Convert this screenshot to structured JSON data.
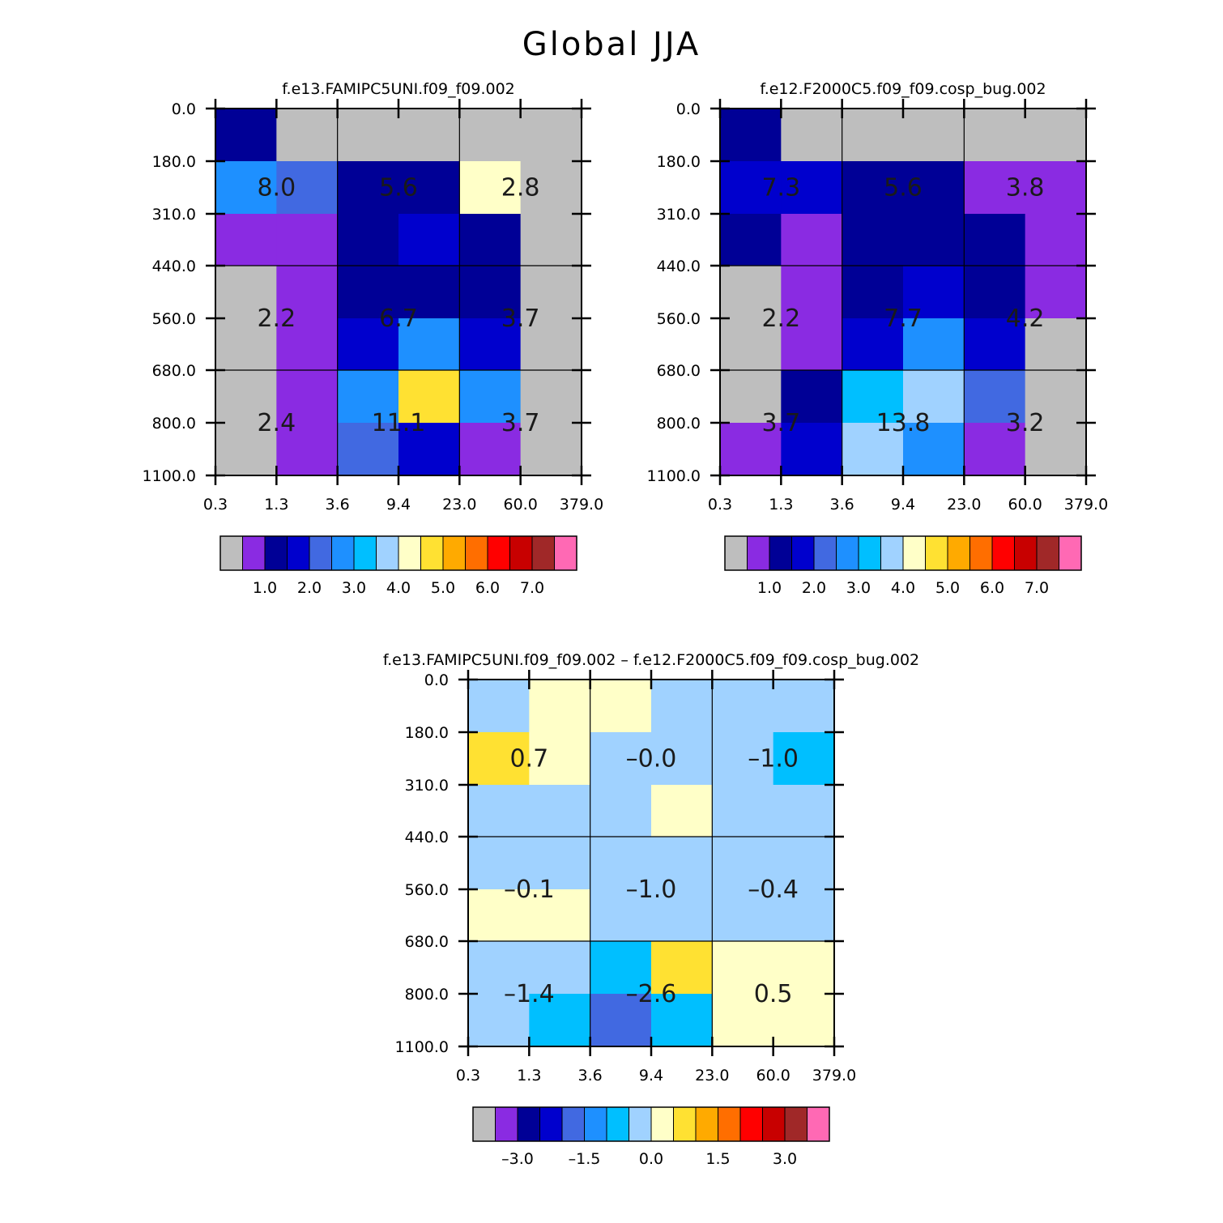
{
  "title": "Global JJA",
  "palette": [
    "#bebebe",
    "#8a2be2",
    "#000096",
    "#0000cd",
    "#4169e1",
    "#1e90ff",
    "#00bfff",
    "#a0d2ff",
    "#ffffc8",
    "#ffe132",
    "#ffaa00",
    "#ff6e00",
    "#ff0000",
    "#c80000",
    "#a02828",
    "#ff69b4"
  ],
  "chart_data": [
    {
      "type": "heatmap",
      "title": "f.e13.FAMIPC5UNI.f09_f09.002",
      "x_ticks": [
        "0.3",
        "1.3",
        "3.6",
        "9.4",
        "23.0",
        "60.0",
        "379.0"
      ],
      "y_ticks": [
        "0.0",
        "180.0",
        "310.0",
        "440.0",
        "560.0",
        "680.0",
        "800.0",
        "1100.0"
      ],
      "cell_colors": [
        [
          2,
          0,
          0,
          0,
          0,
          0
        ],
        [
          5,
          4,
          2,
          2,
          8,
          0
        ],
        [
          1,
          1,
          2,
          3,
          2,
          0
        ],
        [
          0,
          1,
          2,
          2,
          2,
          0
        ],
        [
          0,
          1,
          3,
          5,
          3,
          0
        ],
        [
          0,
          1,
          5,
          9,
          5,
          0
        ],
        [
          0,
          1,
          4,
          3,
          1,
          0
        ]
      ],
      "annotations": [
        {
          "row": 0,
          "col": 0,
          "text": "8.0"
        },
        {
          "row": 0,
          "col": 1,
          "text": "5.6"
        },
        {
          "row": 0,
          "col": 2,
          "text": "2.8"
        },
        {
          "row": 1,
          "col": 0,
          "text": "2.2"
        },
        {
          "row": 1,
          "col": 1,
          "text": "6.7"
        },
        {
          "row": 1,
          "col": 2,
          "text": "3.7"
        },
        {
          "row": 2,
          "col": 0,
          "text": "2.4"
        },
        {
          "row": 2,
          "col": 1,
          "text": "11.1"
        },
        {
          "row": 2,
          "col": 2,
          "text": "3.7"
        }
      ],
      "colorbar": {
        "labels": [
          "1.0",
          "2.0",
          "3.0",
          "4.0",
          "5.0",
          "6.0",
          "7.0"
        ],
        "label_start_boundary": 2
      }
    },
    {
      "type": "heatmap",
      "title": "f.e12.F2000C5.f09_f09.cosp_bug.002",
      "x_ticks": [
        "0.3",
        "1.3",
        "3.6",
        "9.4",
        "23.0",
        "60.0",
        "379.0"
      ],
      "y_ticks": [
        "0.0",
        "180.0",
        "310.0",
        "440.0",
        "560.0",
        "680.0",
        "800.0",
        "1100.0"
      ],
      "cell_colors": [
        [
          2,
          0,
          0,
          0,
          0,
          0
        ],
        [
          3,
          3,
          2,
          2,
          1,
          1
        ],
        [
          2,
          1,
          2,
          2,
          2,
          1
        ],
        [
          0,
          1,
          2,
          3,
          2,
          1
        ],
        [
          0,
          1,
          3,
          5,
          3,
          0
        ],
        [
          0,
          2,
          6,
          7,
          4,
          0
        ],
        [
          1,
          3,
          7,
          5,
          1,
          0
        ]
      ],
      "annotations": [
        {
          "row": 0,
          "col": 0,
          "text": "7.3"
        },
        {
          "row": 0,
          "col": 1,
          "text": "5.6"
        },
        {
          "row": 0,
          "col": 2,
          "text": "3.8"
        },
        {
          "row": 1,
          "col": 0,
          "text": "2.2"
        },
        {
          "row": 1,
          "col": 1,
          "text": "7.7"
        },
        {
          "row": 1,
          "col": 2,
          "text": "4.2"
        },
        {
          "row": 2,
          "col": 0,
          "text": "3.7"
        },
        {
          "row": 2,
          "col": 1,
          "text": "13.8"
        },
        {
          "row": 2,
          "col": 2,
          "text": "3.2"
        }
      ],
      "colorbar": {
        "labels": [
          "1.0",
          "2.0",
          "3.0",
          "4.0",
          "5.0",
          "6.0",
          "7.0"
        ],
        "label_start_boundary": 2
      }
    },
    {
      "type": "heatmap",
      "title": "f.e13.FAMIPC5UNI.f09_f09.002 – f.e12.F2000C5.f09_f09.cosp_bug.002",
      "x_ticks": [
        "0.3",
        "1.3",
        "3.6",
        "9.4",
        "23.0",
        "60.0",
        "379.0"
      ],
      "y_ticks": [
        "0.0",
        "180.0",
        "310.0",
        "440.0",
        "560.0",
        "680.0",
        "800.0",
        "1100.0"
      ],
      "cell_colors": [
        [
          7,
          8,
          8,
          7,
          7,
          7
        ],
        [
          9,
          8,
          7,
          7,
          7,
          6
        ],
        [
          7,
          7,
          7,
          8,
          7,
          7
        ],
        [
          7,
          7,
          7,
          7,
          7,
          7
        ],
        [
          8,
          8,
          7,
          7,
          7,
          7
        ],
        [
          7,
          7,
          6,
          9,
          8,
          8
        ],
        [
          7,
          6,
          4,
          6,
          8,
          8
        ]
      ],
      "annotations": [
        {
          "row": 0,
          "col": 0,
          "text": "0.7"
        },
        {
          "row": 0,
          "col": 1,
          "text": "–0.0"
        },
        {
          "row": 0,
          "col": 2,
          "text": "–1.0"
        },
        {
          "row": 1,
          "col": 0,
          "text": "–0.1"
        },
        {
          "row": 1,
          "col": 1,
          "text": "–1.0"
        },
        {
          "row": 1,
          "col": 2,
          "text": "–0.4"
        },
        {
          "row": 2,
          "col": 0,
          "text": "–1.4"
        },
        {
          "row": 2,
          "col": 1,
          "text": "–2.6"
        },
        {
          "row": 2,
          "col": 2,
          "text": "0.5"
        }
      ],
      "colorbar": {
        "labels": [
          "–3.0",
          "–1.5",
          "0.0",
          "1.5",
          "3.0"
        ],
        "label_start_boundary": 2
      }
    }
  ]
}
